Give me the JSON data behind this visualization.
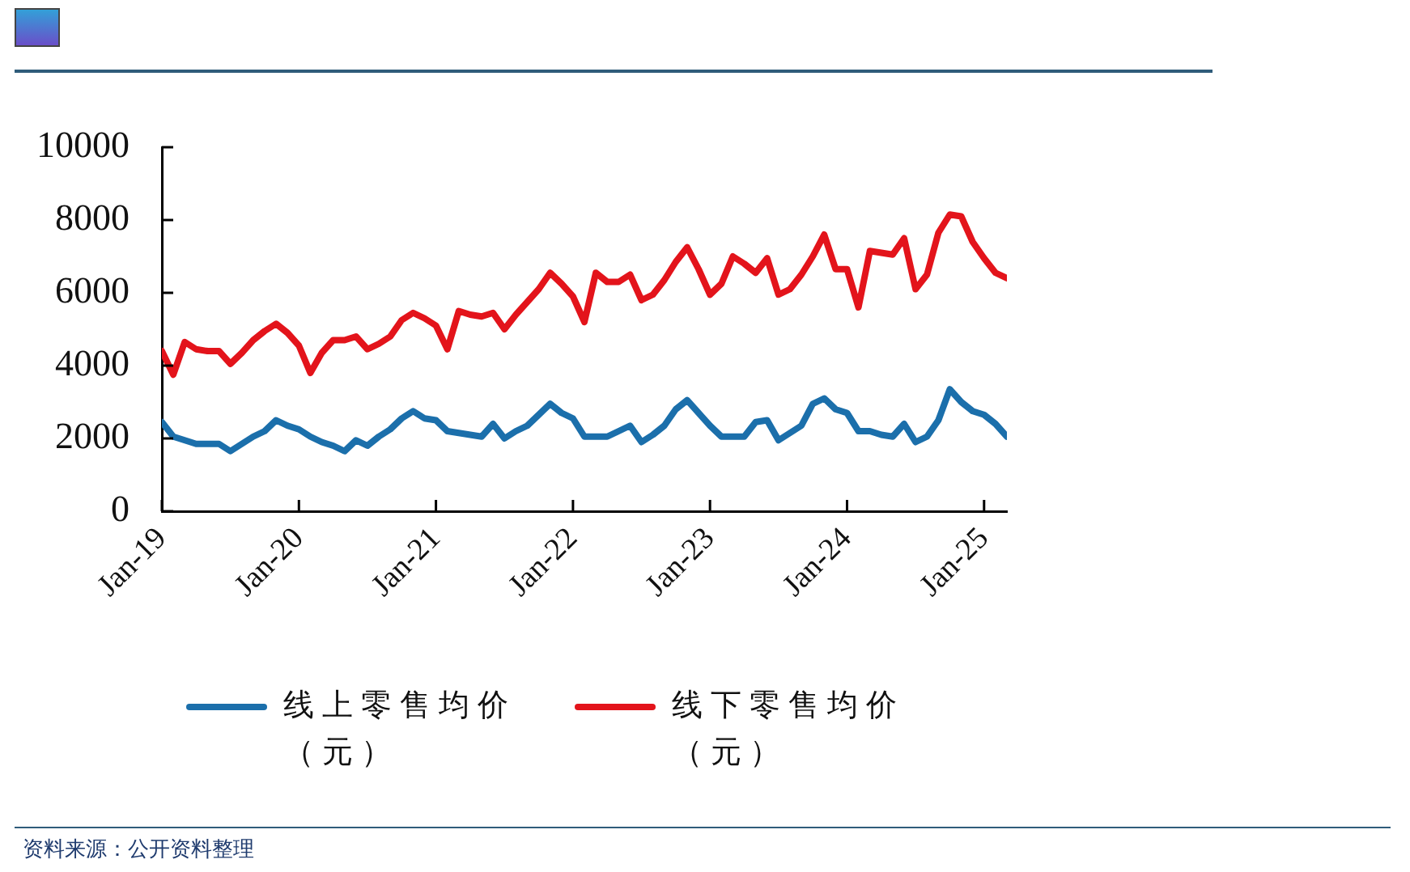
{
  "chart_data": {
    "type": "line",
    "x": [
      "2019-01",
      "2019-02",
      "2019-03",
      "2019-04",
      "2019-05",
      "2019-06",
      "2019-07",
      "2019-08",
      "2019-09",
      "2019-10",
      "2019-11",
      "2019-12",
      "2020-01",
      "2020-02",
      "2020-03",
      "2020-04",
      "2020-05",
      "2020-06",
      "2020-07",
      "2020-08",
      "2020-09",
      "2020-10",
      "2020-11",
      "2020-12",
      "2021-01",
      "2021-02",
      "2021-03",
      "2021-04",
      "2021-05",
      "2021-06",
      "2021-07",
      "2021-08",
      "2021-09",
      "2021-10",
      "2021-11",
      "2021-12",
      "2022-01",
      "2022-02",
      "2022-03",
      "2022-04",
      "2022-05",
      "2022-06",
      "2022-07",
      "2022-08",
      "2022-09",
      "2022-10",
      "2022-11",
      "2022-12",
      "2023-01",
      "2023-02",
      "2023-03",
      "2023-04",
      "2023-05",
      "2023-06",
      "2023-07",
      "2023-08",
      "2023-09",
      "2023-10",
      "2023-11",
      "2023-12",
      "2024-01",
      "2024-02",
      "2024-03",
      "2024-04",
      "2024-05",
      "2024-06",
      "2024-07",
      "2024-08",
      "2024-09",
      "2024-10",
      "2024-11",
      "2024-12",
      "2025-01",
      "2025-02",
      "2025-03"
    ],
    "series": [
      {
        "name": "线上零售均价（元）",
        "color": "#1b6fab",
        "values": [
          2450,
          2050,
          1950,
          1850,
          1850,
          1850,
          1650,
          1850,
          2050,
          2200,
          2500,
          2350,
          2250,
          2050,
          1900,
          1800,
          1650,
          1950,
          1800,
          2050,
          2250,
          2550,
          2750,
          2550,
          2500,
          2200,
          2150,
          2100,
          2050,
          2400,
          2000,
          2200,
          2350,
          2650,
          2950,
          2700,
          2550,
          2050,
          2050,
          2050,
          2200,
          2350,
          1900,
          2100,
          2350,
          2800,
          3050,
          2700,
          2350,
          2050,
          2050,
          2050,
          2450,
          2500,
          1950,
          2150,
          2350,
          2950,
          3100,
          2800,
          2700,
          2200,
          2200,
          2100,
          2050,
          2400,
          1900,
          2050,
          2500,
          3350,
          3000,
          2750,
          2650,
          2400,
          2050
        ]
      },
      {
        "name": "线下零售均价（元）",
        "color": "#e3141b",
        "values": [
          4400,
          3750,
          4650,
          4450,
          4400,
          4400,
          4050,
          4350,
          4700,
          4950,
          5150,
          4900,
          4550,
          3800,
          4350,
          4700,
          4700,
          4800,
          4450,
          4600,
          4800,
          5250,
          5450,
          5300,
          5100,
          4450,
          5500,
          5400,
          5350,
          5450,
          5000,
          5400,
          5750,
          6100,
          6550,
          6250,
          5900,
          5200,
          6550,
          6300,
          6300,
          6500,
          5800,
          5950,
          6350,
          6850,
          7250,
          6650,
          5950,
          6250,
          7000,
          6800,
          6550,
          6950,
          5950,
          6100,
          6500,
          7000,
          7600,
          6650,
          6650,
          5600,
          7150,
          7100,
          7050,
          7500,
          6100,
          6500,
          7650,
          8150,
          8100,
          7400,
          6950,
          6550,
          6400
        ]
      }
    ],
    "xlim": [
      "2019-01",
      "2025-03"
    ],
    "xticks": [
      {
        "value": "2019-01",
        "label": "Jan-19"
      },
      {
        "value": "2020-01",
        "label": "Jan-20"
      },
      {
        "value": "2021-01",
        "label": "Jan-21"
      },
      {
        "value": "2022-01",
        "label": "Jan-22"
      },
      {
        "value": "2023-01",
        "label": "Jan-23"
      },
      {
        "value": "2024-01",
        "label": "Jan-24"
      },
      {
        "value": "2025-01",
        "label": "Jan-25"
      }
    ],
    "ylim": [
      0,
      10000
    ],
    "yticks": [
      0,
      2000,
      4000,
      6000,
      8000,
      10000
    ],
    "grid": false,
    "legend": "bottom",
    "marker": "none",
    "line_style": "solid",
    "annotations": [
      "资料来源：公开资料整理"
    ]
  }
}
